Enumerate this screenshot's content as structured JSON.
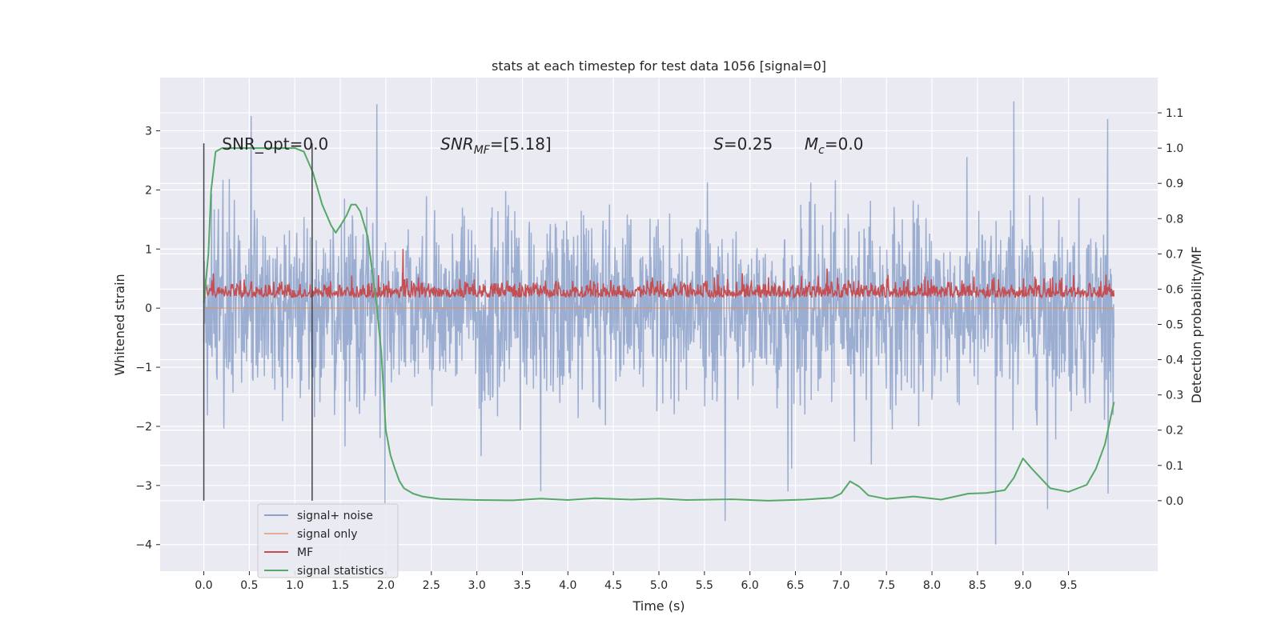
{
  "chart_data": {
    "type": "line",
    "title": "stats at each timestep for test data 1056 [signal=0]",
    "xlabel": "Time (s)",
    "ylabel": "Whitened strain",
    "ylabel_right": "Detection probability/MF",
    "xlim": [
      -0.48,
      10.48
    ],
    "ylim": [
      -4.45,
      3.9
    ],
    "ylim_right": [
      -0.2,
      1.2
    ],
    "x_ticks": [
      0.0,
      0.5,
      1.0,
      1.5,
      2.0,
      2.5,
      3.0,
      3.5,
      4.0,
      4.5,
      5.0,
      5.5,
      6.0,
      6.5,
      7.0,
      7.5,
      8.0,
      8.5,
      9.0,
      9.5
    ],
    "x_tick_labels": [
      "0.0",
      "0.5",
      "1.0",
      "1.5",
      "2.0",
      "2.5",
      "3.0",
      "3.5",
      "4.0",
      "4.5",
      "5.0",
      "5.5",
      "6.0",
      "6.5",
      "7.0",
      "7.5",
      "8.0",
      "8.5",
      "9.0",
      "9.5"
    ],
    "y_ticks": [
      -4,
      -3,
      -2,
      -1,
      0,
      1,
      2,
      3
    ],
    "y_tick_labels": [
      "−4",
      "−3",
      "−2",
      "−1",
      "0",
      "1",
      "2",
      "3"
    ],
    "y_right_ticks": [
      0.0,
      0.1,
      0.2,
      0.3,
      0.4,
      0.5,
      0.6,
      0.7,
      0.8,
      0.9,
      1.0,
      1.1
    ],
    "y_right_tick_labels": [
      "0.0",
      "0.1",
      "0.2",
      "0.3",
      "0.4",
      "0.5",
      "0.6",
      "0.7",
      "0.8",
      "0.9",
      "1.0",
      "1.1"
    ],
    "grid": true,
    "legend_position": "lower-left",
    "colors": {
      "background": "#eaeaf2",
      "noise": "#4c72b0",
      "signal_only": "#dd8452",
      "mf": "#c44e52",
      "signal_statistics": "#55a868",
      "vline": "#444444"
    },
    "annotations": [
      {
        "text": "SNR_opt=0.0",
        "x": 0.2,
        "y_right": 1.0
      },
      {
        "text": "SNR_MF=[5.18]",
        "x": 2.6,
        "y_right": 1.0
      },
      {
        "text": "S=0.25",
        "x": 5.6,
        "y_right": 1.0
      },
      {
        "text": "M_c=0.0",
        "x": 6.6,
        "y_right": 1.0
      }
    ],
    "vlines": [
      {
        "x": 0.0,
        "y_right": [
          0.0,
          1.0
        ]
      },
      {
        "x": 1.19,
        "y_right": [
          0.0,
          1.0
        ]
      }
    ],
    "series": [
      {
        "name": "signal+ noise",
        "axis": "left",
        "description_values": "whitened noise time series, 0 to 10 s",
        "x_range": [
          0.0,
          10.0
        ],
        "typical_std": 0.78,
        "peaks": [
          {
            "x": 0.52,
            "y": 3.25
          },
          {
            "x": 1.9,
            "y": 3.45
          },
          {
            "x": 5.73,
            "y": -3.6
          },
          {
            "x": 8.7,
            "y": -4.0
          },
          {
            "x": 8.9,
            "y": 3.55
          },
          {
            "x": 9.27,
            "y": -3.4
          },
          {
            "x": 9.93,
            "y": 3.2
          },
          {
            "x": 3.7,
            "y": -3.1
          },
          {
            "x": 6.42,
            "y": -3.1
          },
          {
            "x": 1.99,
            "y": -3.3
          }
        ]
      },
      {
        "name": "signal only",
        "axis": "left",
        "x_range": [
          0.0,
          10.0
        ],
        "values": "constant 0"
      },
      {
        "name": "MF",
        "axis": "left",
        "x_range": [
          0.0,
          10.0
        ],
        "baseline": 0.22,
        "peaks": [
          {
            "x": 2.19,
            "y": 1.0
          }
        ]
      },
      {
        "name": "signal statistics",
        "axis": "right",
        "x": [
          0.0,
          0.05,
          0.08,
          0.13,
          0.2,
          0.3,
          0.5,
          0.8,
          1.0,
          1.1,
          1.2,
          1.3,
          1.4,
          1.45,
          1.5,
          1.57,
          1.62,
          1.67,
          1.72,
          1.8,
          1.9,
          1.95,
          2.0,
          2.05,
          2.1,
          2.15,
          2.2,
          2.3,
          2.4,
          2.6,
          3.0,
          3.4,
          3.7,
          4.0,
          4.3,
          4.7,
          5.0,
          5.3,
          5.8,
          6.2,
          6.6,
          6.9,
          7.0,
          7.1,
          7.2,
          7.3,
          7.5,
          7.8,
          8.1,
          8.4,
          8.6,
          8.8,
          8.9,
          9.0,
          9.1,
          9.3,
          9.5,
          9.7,
          9.8,
          9.9,
          10.0
        ],
        "y": [
          0.56,
          0.7,
          0.88,
          0.99,
          1.0,
          1.0,
          1.0,
          1.0,
          1.0,
          0.99,
          0.93,
          0.84,
          0.78,
          0.76,
          0.78,
          0.81,
          0.84,
          0.84,
          0.82,
          0.75,
          0.55,
          0.42,
          0.2,
          0.13,
          0.09,
          0.055,
          0.035,
          0.02,
          0.012,
          0.005,
          0.002,
          0.001,
          0.006,
          0.002,
          0.007,
          0.003,
          0.006,
          0.002,
          0.004,
          0.0,
          0.003,
          0.008,
          0.02,
          0.055,
          0.04,
          0.015,
          0.005,
          0.012,
          0.003,
          0.02,
          0.022,
          0.03,
          0.065,
          0.12,
          0.09,
          0.035,
          0.025,
          0.045,
          0.09,
          0.16,
          0.28
        ]
      }
    ]
  }
}
